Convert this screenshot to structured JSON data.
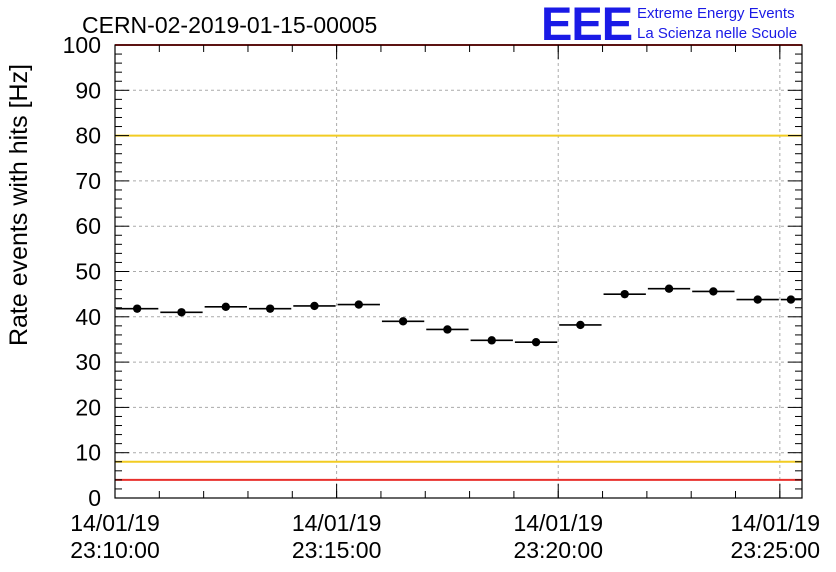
{
  "header": {
    "run_id": "CERN-02-2019-01-15-00005",
    "logo_letters": "EEE",
    "logo_line1": "Extreme Energy Events",
    "logo_line2": "La Scienza nelle Scuole"
  },
  "colors": {
    "points": "#000000",
    "grid": "#aaaaaa",
    "limit_red": "#e8302c",
    "limit_yellow": "#f2cc22",
    "logo_blue": "#1a1ae6"
  },
  "chart_data": {
    "type": "scatter",
    "title": "CERN-02-2019-01-15-00005",
    "xlabel": "",
    "ylabel": "Rate events with hits [Hz]",
    "ylim": [
      0,
      100
    ],
    "xlim": [
      "14/01/19 23:10:00",
      "14/01/19 23:25:30"
    ],
    "yticks": [
      "0",
      "10",
      "20",
      "30",
      "40",
      "50",
      "60",
      "70",
      "80",
      "90",
      "100"
    ],
    "xticks": [
      {
        "date": "14/01/19",
        "time": "23:10:00"
      },
      {
        "date": "14/01/19",
        "time": "23:15:00"
      },
      {
        "date": "14/01/19",
        "time": "23:20:00"
      },
      {
        "date": "14/01/19",
        "time": "23:25:00"
      }
    ],
    "grid": true,
    "points": [
      {
        "start": "14/01/19 23:10:00",
        "end": "14/01/19 23:11:00",
        "y": 41.8
      },
      {
        "start": "14/01/19 23:11:00",
        "end": "14/01/19 23:12:00",
        "y": 41.0
      },
      {
        "start": "14/01/19 23:12:00",
        "end": "14/01/19 23:13:00",
        "y": 42.2
      },
      {
        "start": "14/01/19 23:13:00",
        "end": "14/01/19 23:14:00",
        "y": 41.8
      },
      {
        "start": "14/01/19 23:14:00",
        "end": "14/01/19 23:15:00",
        "y": 42.4
      },
      {
        "start": "14/01/19 23:15:00",
        "end": "14/01/19 23:16:00",
        "y": 42.7
      },
      {
        "start": "14/01/19 23:16:00",
        "end": "14/01/19 23:17:00",
        "y": 39.0
      },
      {
        "start": "14/01/19 23:17:00",
        "end": "14/01/19 23:18:00",
        "y": 37.2
      },
      {
        "start": "14/01/19 23:18:00",
        "end": "14/01/19 23:19:00",
        "y": 34.8
      },
      {
        "start": "14/01/19 23:19:00",
        "end": "14/01/19 23:20:00",
        "y": 34.4
      },
      {
        "start": "14/01/19 23:20:00",
        "end": "14/01/19 23:21:00",
        "y": 38.2
      },
      {
        "start": "14/01/19 23:21:00",
        "end": "14/01/19 23:22:00",
        "y": 45.0
      },
      {
        "start": "14/01/19 23:22:00",
        "end": "14/01/19 23:23:00",
        "y": 46.2
      },
      {
        "start": "14/01/19 23:23:00",
        "end": "14/01/19 23:24:00",
        "y": 45.6
      },
      {
        "start": "14/01/19 23:24:00",
        "end": "14/01/19 23:25:00",
        "y": 43.8
      },
      {
        "start": "14/01/19 23:25:00",
        "end": "14/01/19 23:25:30",
        "y": 43.8
      }
    ],
    "limit_lines": [
      {
        "y": 100,
        "color": "#e8302c"
      },
      {
        "y": 80,
        "color": "#f2cc22"
      },
      {
        "y": 8,
        "color": "#f2cc22"
      },
      {
        "y": 4,
        "color": "#e8302c"
      }
    ]
  }
}
